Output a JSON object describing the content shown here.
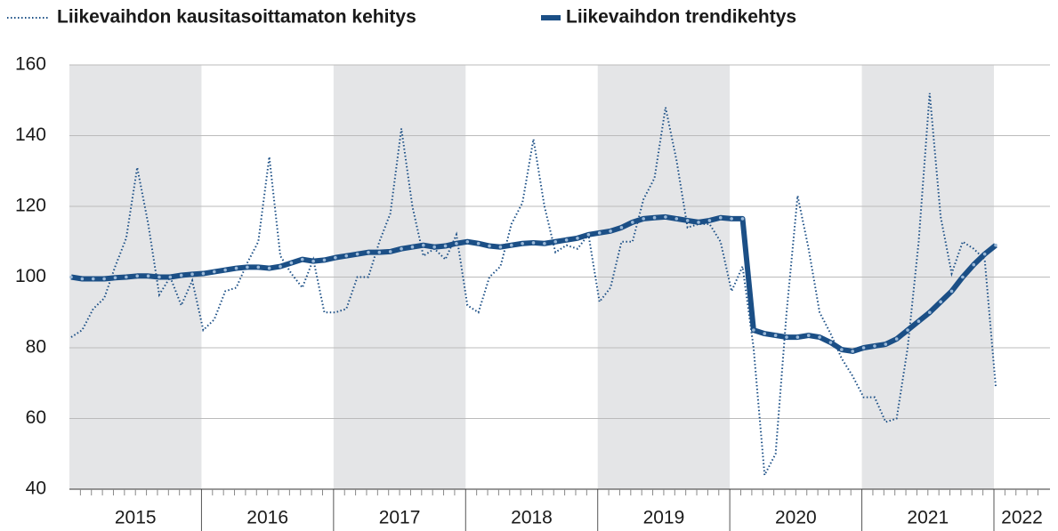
{
  "chart_data": {
    "type": "line",
    "x_labels": [
      "2015",
      "2016",
      "2017",
      "2018",
      "2019",
      "2020",
      "2021",
      "2022"
    ],
    "ylim": [
      40,
      160
    ],
    "yticks": [
      40,
      60,
      80,
      100,
      120,
      140,
      160
    ],
    "grid": true,
    "series": [
      {
        "name": "Liikevaihdon kausitasoittamaton kehitys",
        "color": "#1b4f86",
        "style": "dotted",
        "values": [
          83,
          85,
          91,
          94,
          103,
          111,
          131,
          115,
          95,
          100,
          92,
          99,
          85,
          88,
          96,
          97,
          104,
          110,
          134,
          106,
          101,
          97,
          105,
          90,
          90,
          91,
          100,
          100,
          110,
          118,
          142,
          120,
          106,
          108,
          105,
          112,
          92,
          90,
          100,
          103,
          115,
          121,
          139,
          120,
          107,
          109,
          108,
          112,
          93,
          97,
          110,
          110,
          122,
          128,
          148,
          133,
          114,
          115,
          115,
          110,
          96,
          103,
          80,
          44,
          50,
          90,
          123,
          108,
          90,
          84,
          77,
          72,
          66,
          66,
          59,
          60,
          80,
          110,
          152,
          117,
          101,
          110,
          108,
          105,
          69
        ]
      },
      {
        "name": "Liikevaihdon trendikehtys",
        "color": "#1b4f86",
        "style": "solid",
        "values": [
          100,
          99.5,
          99.5,
          99.5,
          99.8,
          100,
          100.3,
          100.3,
          100,
          100,
          100.5,
          100.8,
          101,
          101.5,
          102,
          102.5,
          102.8,
          102.8,
          102.5,
          103,
          104,
          105,
          104.5,
          104.8,
          105.5,
          106,
          106.5,
          107,
          107,
          107.2,
          108,
          108.5,
          109,
          108.5,
          108.8,
          109.5,
          110,
          109.5,
          108.8,
          108.5,
          109,
          109.5,
          109.7,
          109.5,
          110,
          110.5,
          111,
          112,
          112.5,
          113,
          114,
          115.5,
          116.5,
          116.8,
          117,
          116.5,
          116,
          115.5,
          116,
          116.8,
          116.5,
          116.5,
          85,
          84,
          83.5,
          83,
          83,
          83.5,
          83,
          81.5,
          79.5,
          79,
          80,
          80.5,
          81,
          82.5,
          85,
          87.5,
          90,
          93,
          96,
          100,
          103.5,
          106.5,
          109
        ]
      }
    ]
  }
}
